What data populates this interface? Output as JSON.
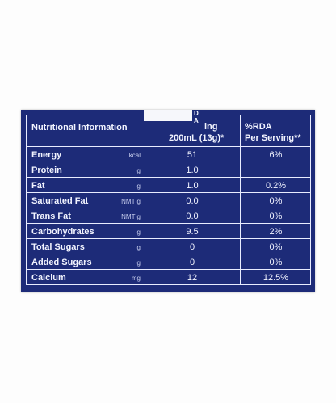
{
  "header": {
    "title": "Nutritional Information",
    "col2_line1": "ing",
    "col2_line2": "200mL (13g)*",
    "col3_line1": "%RDA",
    "col3_line2": "Per Serving**",
    "fragment": "D A"
  },
  "rows": [
    {
      "name": "Energy",
      "unit": "kcal",
      "value": "51",
      "rda": "6%"
    },
    {
      "name": "Protein",
      "unit": "g",
      "value": "1.0",
      "rda": ""
    },
    {
      "name": "Fat",
      "unit": "g",
      "value": "1.0",
      "rda": "0.2%"
    },
    {
      "name": "Saturated Fat",
      "unit": "NMT g",
      "value": "0.0",
      "rda": "0%"
    },
    {
      "name": "Trans Fat",
      "unit": "NMT g",
      "value": "0.0",
      "rda": "0%"
    },
    {
      "name": "Carbohydrates",
      "unit": "g",
      "value": "9.5",
      "rda": "2%"
    },
    {
      "name": "Total Sugars",
      "unit": "g",
      "value": "0",
      "rda": "0%"
    },
    {
      "name": "Added Sugars",
      "unit": "g",
      "value": "0",
      "rda": "0%"
    },
    {
      "name": "Calcium",
      "unit": "mg",
      "value": "12",
      "rda": "12.5%"
    }
  ]
}
